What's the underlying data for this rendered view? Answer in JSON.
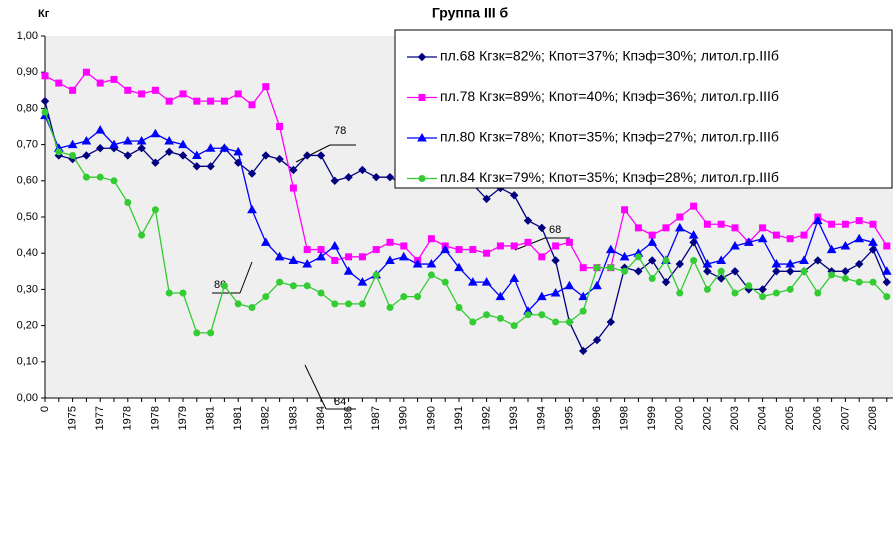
{
  "chart_data": {
    "type": "line",
    "title": "Группа III б",
    "y_label": "Кг",
    "categories": [
      "0",
      null,
      "1975",
      null,
      "1977",
      null,
      "1978",
      null,
      "1978",
      null,
      "1979",
      null,
      "1981",
      null,
      "1981",
      null,
      "1982",
      null,
      "1983",
      null,
      "1984",
      null,
      "1986",
      null,
      "1987",
      null,
      "1990",
      null,
      "1990",
      null,
      "1991",
      null,
      "1992",
      null,
      "1993",
      null,
      "1994",
      null,
      "1995",
      null,
      "1996",
      null,
      "1998",
      null,
      "1999",
      null,
      "2000",
      null,
      "2002",
      null,
      "2003",
      null,
      "2004",
      null,
      "2005",
      null,
      "2006",
      null,
      "2007",
      null,
      "2008",
      null
    ],
    "series": [
      {
        "name": "пл.68  Кгзк=82%; Кпот=37%; Кпэф=30%; литол.гр.IIIб",
        "color": "#000080",
        "marker": "diamond",
        "values": [
          0.82,
          0.67,
          0.66,
          0.67,
          0.69,
          0.69,
          0.67,
          0.69,
          0.65,
          0.68,
          0.67,
          0.64,
          0.64,
          0.69,
          0.65,
          0.62,
          0.67,
          0.66,
          0.63,
          0.67,
          0.67,
          0.6,
          0.61,
          0.63,
          0.61,
          0.61,
          0.59,
          0.61,
          0.61,
          0.59,
          0.61,
          0.59,
          0.55,
          0.58,
          0.56,
          0.49,
          0.47,
          0.38,
          0.21,
          0.13,
          0.16,
          0.21,
          0.36,
          0.35,
          0.38,
          0.32,
          0.37,
          0.43,
          0.35,
          0.33,
          0.35,
          0.3,
          0.3,
          0.35,
          0.35,
          0.35,
          0.38,
          0.35,
          0.35,
          0.37,
          0.41,
          0.32
        ]
      },
      {
        "name": "пл.78  Кгзк=89%; Кпот=40%; Кпэф=36%; литол.гр.IIIб",
        "color": "#ff00ff",
        "marker": "square",
        "values": [
          0.89,
          0.87,
          0.85,
          0.9,
          0.87,
          0.88,
          0.85,
          0.84,
          0.85,
          0.82,
          0.84,
          0.82,
          0.82,
          0.82,
          0.84,
          0.81,
          0.86,
          0.75,
          0.58,
          0.41,
          0.41,
          0.38,
          0.39,
          0.39,
          0.41,
          0.43,
          0.42,
          0.38,
          0.44,
          0.42,
          0.41,
          0.41,
          0.4,
          0.42,
          0.42,
          0.43,
          0.39,
          0.42,
          0.43,
          0.36,
          0.36,
          0.36,
          0.52,
          0.47,
          0.45,
          0.47,
          0.5,
          0.53,
          0.48,
          0.48,
          0.47,
          0.43,
          0.47,
          0.45,
          0.44,
          0.45,
          0.5,
          0.48,
          0.48,
          0.49,
          0.48,
          0.42
        ]
      },
      {
        "name": "пл.80  Кгзк=78%; Кпот=35%; Кпэф=27%; литол.гр.IIIб",
        "color": "#0000ff",
        "marker": "triangle",
        "values": [
          0.78,
          0.69,
          0.7,
          0.71,
          0.74,
          0.7,
          0.71,
          0.71,
          0.73,
          0.71,
          0.7,
          0.67,
          0.69,
          0.69,
          0.68,
          0.52,
          0.43,
          0.39,
          0.38,
          0.37,
          0.39,
          0.42,
          0.35,
          0.32,
          0.34,
          0.38,
          0.39,
          0.37,
          0.37,
          0.41,
          0.36,
          0.32,
          0.32,
          0.28,
          0.33,
          0.24,
          0.28,
          0.29,
          0.31,
          0.28,
          0.31,
          0.41,
          0.39,
          0.4,
          0.43,
          0.38,
          0.47,
          0.45,
          0.37,
          0.38,
          0.42,
          0.43,
          0.44,
          0.37,
          0.37,
          0.38,
          0.49,
          0.41,
          0.42,
          0.44,
          0.43,
          0.35
        ]
      },
      {
        "name": "пл.84  Кгзк=79%; Кпот=35%; Кпэф=28%; литол.гр.IIIб",
        "color": "#33cc33",
        "marker": "circle",
        "values": [
          0.79,
          0.68,
          0.67,
          0.61,
          0.61,
          0.6,
          0.54,
          0.45,
          0.52,
          0.29,
          0.29,
          0.18,
          0.18,
          0.31,
          0.26,
          0.25,
          0.28,
          0.32,
          0.31,
          0.31,
          0.29,
          0.26,
          0.26,
          0.26,
          0.34,
          0.25,
          0.28,
          0.28,
          0.34,
          0.32,
          0.25,
          0.21,
          0.23,
          0.22,
          0.2,
          0.23,
          0.23,
          0.21,
          0.21,
          0.24,
          0.36,
          0.36,
          0.35,
          0.39,
          0.33,
          0.38,
          0.29,
          0.38,
          0.3,
          0.35,
          0.29,
          0.31,
          0.28,
          0.29,
          0.3,
          0.35,
          0.29,
          0.34,
          0.33,
          0.32,
          0.32,
          0.28
        ]
      }
    ],
    "ylim": [
      0,
      1
    ],
    "yticks": [
      {
        "value": 0,
        "label": "0,00"
      },
      {
        "value": 0.1,
        "label": "0,10"
      },
      {
        "value": 0.2,
        "label": "0,20"
      },
      {
        "value": 0.3,
        "label": "0,30"
      },
      {
        "value": 0.4,
        "label": "0,40"
      },
      {
        "value": 0.5,
        "label": "0,50"
      },
      {
        "value": 0.6,
        "label": "0,60"
      },
      {
        "value": 0.7,
        "label": "0,70"
      },
      {
        "value": 0.8,
        "label": "0,80"
      },
      {
        "value": 0.9,
        "label": "0,90"
      },
      {
        "value": 1,
        "label": "1,00"
      }
    ],
    "annotations": [
      "78",
      "68",
      "80",
      "84"
    ],
    "legend": "upper right"
  }
}
